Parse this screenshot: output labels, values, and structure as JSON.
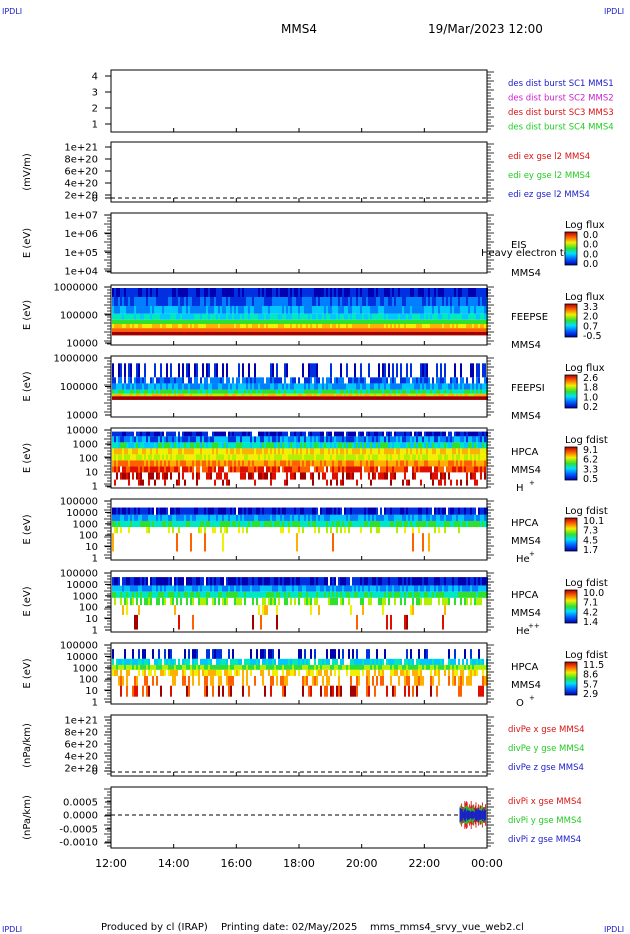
{
  "header": {
    "corner_tl": "IPDLI",
    "corner_tr": "IPDLI",
    "corner_bl": "IPDLI",
    "corner_br": "IPDLI",
    "mission": "MMS4",
    "datetime": "19/Mar/2023 12:00"
  },
  "footer": {
    "produced_by": "Produced by cl (IRAP)",
    "printing_date": "Printing date: 02/May/2025",
    "script_name": "mms_mms4_srvy_vue_web2.cl"
  },
  "colors": {
    "blue": "#1a1acc",
    "magenta": "#cc22cc",
    "red": "#dd1111",
    "green": "#22cc22"
  },
  "chart_data": {
    "type": "multi-panel time series / spectrogram",
    "x_ticks": [
      "12:00",
      "14:00",
      "16:00",
      "18:00",
      "20:00",
      "22:00",
      "00:00"
    ],
    "x_range_hours": [
      12,
      24
    ],
    "panels": [
      {
        "id": "p1",
        "type": "line",
        "yticks": [
          "4",
          "3",
          "2",
          "1"
        ],
        "ylabel": "",
        "legend": [
          {
            "text": "des dist burst SC1 MMS1",
            "color": "blue"
          },
          {
            "text": "des dist burst SC2 MMS2",
            "color": "magenta"
          },
          {
            "text": "des dist burst SC3 MMS3",
            "color": "red"
          },
          {
            "text": "des dist burst SC4 MMS4",
            "color": "green"
          }
        ]
      },
      {
        "id": "p2",
        "type": "line",
        "yticks": [
          "1e+21",
          "8e+20",
          "6e+20",
          "4e+20",
          "2e+20",
          "0"
        ],
        "ylabel": "(mV/m)",
        "legend": [
          {
            "text": "edi ex gse l2 MMS4",
            "color": "red"
          },
          {
            "text": "edi ey gse l2 MMS4",
            "color": "green"
          },
          {
            "text": "edi ez gse l2 MMS4",
            "color": "blue"
          }
        ]
      },
      {
        "id": "p3",
        "type": "heatmap",
        "yticks": [
          "1e+07",
          "1e+06",
          "1e+05",
          "1e+04"
        ],
        "ylabel": "E (eV)",
        "instrument": [
          "EIS",
          "MMS4"
        ],
        "overlay": "Heavy electron to",
        "cbar_title": "Log flux",
        "cbar_ticks": [
          "0.0",
          "0.0",
          "0.0",
          "0.0"
        ]
      },
      {
        "id": "p4",
        "type": "heatmap",
        "yticks": [
          "1000000",
          "100000",
          "10000"
        ],
        "ylabel": "E (eV)",
        "instrument": [
          "FEEPSE",
          "MMS4"
        ],
        "cbar_title": "Log flux",
        "cbar_ticks": [
          "3.3",
          "2.0",
          "0.7",
          "-0.5"
        ]
      },
      {
        "id": "p5",
        "type": "heatmap",
        "yticks": [
          "1000000",
          "100000",
          "10000"
        ],
        "ylabel": "E (eV)",
        "instrument": [
          "FEEPSI",
          "MMS4"
        ],
        "cbar_title": "Log flux",
        "cbar_ticks": [
          "2.6",
          "1.8",
          "1.0",
          "0.2"
        ]
      },
      {
        "id": "p6",
        "type": "heatmap",
        "yticks": [
          "10000",
          "1000",
          "100",
          "10",
          "1"
        ],
        "ylabel": "E (eV)",
        "instrument": [
          "HPCA",
          "MMS4"
        ],
        "species": "H",
        "charge": "+",
        "cbar_title": "Log fdist",
        "cbar_ticks": [
          "9.1",
          "6.2",
          "3.3",
          "0.5"
        ]
      },
      {
        "id": "p7",
        "type": "heatmap",
        "yticks": [
          "100000",
          "10000",
          "1000",
          "100",
          "10",
          "1"
        ],
        "ylabel": "E (eV)",
        "instrument": [
          "HPCA",
          "MMS4"
        ],
        "species": "He",
        "charge": "+",
        "cbar_title": "Log fdist",
        "cbar_ticks": [
          "10.1",
          "7.3",
          "4.5",
          "1.7"
        ]
      },
      {
        "id": "p8",
        "type": "heatmap",
        "yticks": [
          "100000",
          "10000",
          "1000",
          "100",
          "10",
          "1"
        ],
        "ylabel": "E (eV)",
        "instrument": [
          "HPCA",
          "MMS4"
        ],
        "species": "He",
        "charge": "++",
        "cbar_title": "Log fdist",
        "cbar_ticks": [
          "10.0",
          "7.1",
          "4.2",
          "1.4"
        ]
      },
      {
        "id": "p9",
        "type": "heatmap",
        "yticks": [
          "100000",
          "10000",
          "1000",
          "100",
          "10",
          "1"
        ],
        "ylabel": "E (eV)",
        "instrument": [
          "HPCA",
          "MMS4"
        ],
        "species": "O",
        "charge": "+",
        "cbar_title": "Log fdist",
        "cbar_ticks": [
          "11.5",
          "8.6",
          "5.7",
          "2.9"
        ]
      },
      {
        "id": "p10",
        "type": "line",
        "yticks": [
          "1e+21",
          "8e+20",
          "6e+20",
          "4e+20",
          "2e+20",
          "0"
        ],
        "ylabel": "(nPa/km)",
        "legend": [
          {
            "text": "divPe x gse MMS4",
            "color": "red"
          },
          {
            "text": "divPe y gse MMS4",
            "color": "green"
          },
          {
            "text": "divPe z gse MMS4",
            "color": "blue"
          }
        ]
      },
      {
        "id": "p11",
        "type": "line",
        "yticks": [
          "0.0005",
          "0.0000",
          "-0.0005",
          "-0.0010"
        ],
        "ylabel": "(nPa/km)",
        "legend": [
          {
            "text": "divPi x gse MMS4",
            "color": "red"
          },
          {
            "text": "divPi y gse MMS4",
            "color": "green"
          },
          {
            "text": "divPi z gse MMS4",
            "color": "blue"
          }
        ]
      }
    ]
  }
}
